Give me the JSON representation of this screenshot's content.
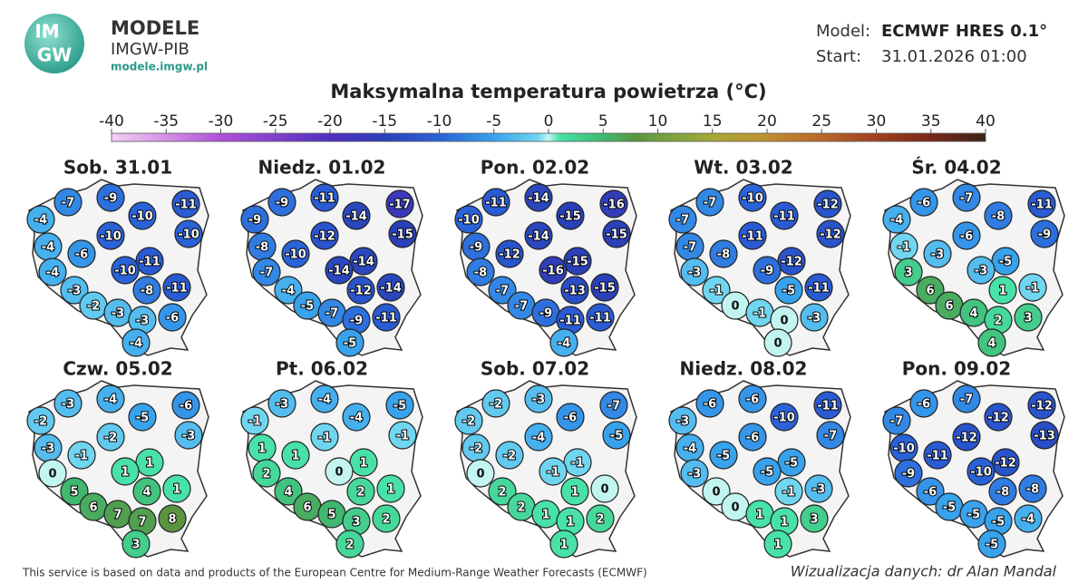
{
  "header": {
    "logo": [
      "IM",
      "GW"
    ],
    "brand": "MODELE",
    "org": "IMGW-PIB",
    "url": "modele.imgw.pl",
    "model_label": "Model:",
    "model": "ECMWF HRES 0.1°",
    "start_label": "Start:",
    "start": "31.01.2026 01:00"
  },
  "title": "Maksymalna temperatura powietrza (°C)",
  "colorbar": {
    "ticks": [
      -40,
      -35,
      -30,
      -25,
      -20,
      -15,
      -10,
      -5,
      0,
      5,
      10,
      15,
      20,
      25,
      30,
      35,
      40
    ]
  },
  "maps": [
    {
      "title": "Sob. 31.01",
      "values": [
        -7,
        -9,
        -11,
        -4,
        -10,
        -10,
        -10,
        -4,
        -6,
        -11,
        -10,
        -4,
        -3,
        -8,
        -11,
        -2,
        -3,
        -3,
        -6,
        -4
      ]
    },
    {
      "title": "Niedz. 01.02",
      "values": [
        -9,
        -11,
        -17,
        -9,
        -14,
        -15,
        -12,
        -8,
        -10,
        -14,
        -14,
        -7,
        -4,
        -12,
        -14,
        -5,
        -7,
        -9,
        -11,
        -5
      ]
    },
    {
      "title": "Pon. 02.02",
      "values": [
        -11,
        -14,
        -16,
        -10,
        -15,
        -15,
        -14,
        -9,
        -12,
        -15,
        -16,
        -8,
        -7,
        -13,
        -15,
        -7,
        -9,
        -11,
        -11,
        -4
      ]
    },
    {
      "title": "Wt. 03.02",
      "values": [
        -7,
        -10,
        -12,
        -7,
        -11,
        -12,
        -11,
        -7,
        -8,
        -12,
        -9,
        -3,
        -1,
        -5,
        -11,
        0,
        -1,
        0,
        -3,
        0
      ]
    },
    {
      "title": "Śr. 04.02",
      "values": [
        -6,
        -7,
        -11,
        -4,
        -8,
        -9,
        -6,
        -1,
        -3,
        -5,
        -3,
        3,
        6,
        1,
        -1,
        6,
        4,
        2,
        3,
        4
      ]
    },
    {
      "title": "Czw. 05.02",
      "values": [
        -3,
        -4,
        -6,
        -2,
        -5,
        -3,
        -2,
        -3,
        -1,
        1,
        1,
        0,
        5,
        4,
        1,
        6,
        7,
        7,
        8,
        3
      ]
    },
    {
      "title": "Pt. 06.02",
      "values": [
        -3,
        -4,
        -5,
        -1,
        -4,
        -1,
        -1,
        1,
        1,
        1,
        0,
        2,
        4,
        2,
        1,
        6,
        5,
        3,
        2,
        2
      ]
    },
    {
      "title": "Sob. 07.02",
      "values": [
        -2,
        -3,
        -7,
        -2,
        -6,
        -5,
        -4,
        -2,
        -2,
        -1,
        -1,
        0,
        2,
        1,
        0,
        2,
        1,
        1,
        2,
        1
      ]
    },
    {
      "title": "Niedz. 08.02",
      "values": [
        -6,
        -6,
        -11,
        -3,
        -10,
        -7,
        -6,
        -4,
        -5,
        -5,
        -5,
        -3,
        0,
        -1,
        -3,
        0,
        1,
        1,
        3,
        1
      ]
    },
    {
      "title": "Pon. 09.02",
      "values": [
        -6,
        -7,
        -12,
        -7,
        -12,
        -13,
        -12,
        -10,
        -11,
        -12,
        -10,
        -9,
        -6,
        -8,
        -8,
        -5,
        -5,
        -5,
        -4,
        -5
      ]
    }
  ],
  "footer": {
    "source": "This service is based on data and products of the European Centre for Medium-Range Weather Forecasts (ECMWF)",
    "credit": "Wizualizacja danych: dr Alan Mandal"
  }
}
